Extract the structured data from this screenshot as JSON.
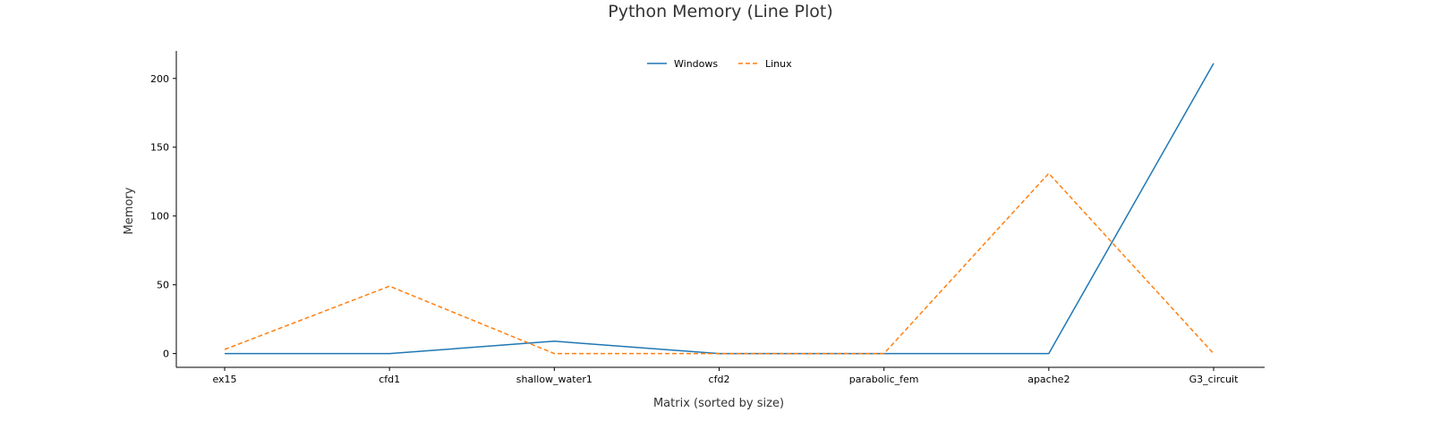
{
  "chart_data": {
    "type": "line",
    "title": "Python Memory (Line Plot)",
    "xlabel": "Matrix (sorted by size)",
    "ylabel": "Memory",
    "categories": [
      "ex15",
      "cfd1",
      "shallow_water1",
      "cfd2",
      "parabolic_fem",
      "apache2",
      "G3_circuit"
    ],
    "ylim": [
      -10,
      220
    ],
    "yticks": [
      0,
      50,
      100,
      150,
      200
    ],
    "grid": false,
    "legend": {
      "placement": "top-center",
      "entries": [
        "Windows",
        "Linux"
      ]
    },
    "series": [
      {
        "name": "Windows",
        "color": "#1f77b4",
        "linestyle": "solid",
        "values": [
          0,
          0,
          9,
          0,
          0,
          0,
          211
        ]
      },
      {
        "name": "Linux",
        "color": "#ff7f0e",
        "linestyle": "dashed",
        "values": [
          3,
          49,
          0,
          0,
          0,
          131,
          0
        ]
      }
    ]
  }
}
